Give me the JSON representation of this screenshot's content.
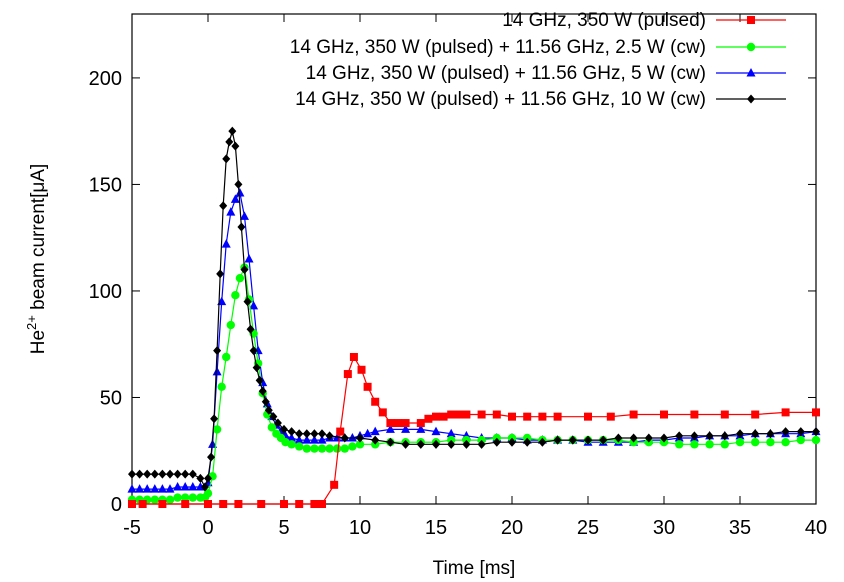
{
  "chart_data": {
    "type": "line",
    "xlabel": "Time [ms]",
    "ylabel": {
      "base": "He",
      "sup": "2+",
      "rest": " beam current[μA]"
    },
    "xlim": [
      -5,
      40
    ],
    "ylim": [
      0,
      230
    ],
    "xticks": [
      -5,
      0,
      5,
      10,
      15,
      20,
      25,
      30,
      35,
      40
    ],
    "yticks": [
      0,
      50,
      100,
      150,
      200
    ],
    "grid": false,
    "legend_position": "top-right",
    "series": [
      {
        "name": "14 GHz, 350 W (pulsed)",
        "color": "#ff0000",
        "marker": "square",
        "x": [
          -5,
          -4.3,
          -3,
          -1.5,
          0,
          1,
          2,
          3.5,
          5,
          6,
          7,
          7.5,
          8.3,
          8.7,
          9.2,
          9.6,
          10.1,
          10.5,
          11,
          11.5,
          12,
          12.5,
          13,
          14,
          14.5,
          15,
          15.5,
          16,
          16.5,
          17,
          18,
          19,
          20,
          21,
          22,
          23,
          25,
          26.5,
          28,
          30,
          32,
          34,
          36,
          38,
          40
        ],
        "y": [
          0,
          0,
          0,
          0,
          0,
          0,
          0,
          0,
          0,
          0,
          0,
          0,
          9,
          34,
          61,
          69,
          63,
          55,
          48,
          43,
          38,
          38,
          38,
          38,
          40,
          41,
          41,
          42,
          42,
          42,
          42,
          42,
          41,
          41,
          41,
          41,
          41,
          41,
          42,
          42,
          42,
          42,
          42,
          43,
          43
        ]
      },
      {
        "name": "14 GHz, 350 W (pulsed) + 11.56 GHz, 2.5 W (cw)",
        "color": "#00ff00",
        "marker": "circle",
        "x": [
          -5,
          -4.5,
          -4,
          -3.5,
          -3,
          -2.5,
          -2,
          -1.5,
          -1,
          -0.5,
          -0.2,
          0,
          0.3,
          0.6,
          0.9,
          1.2,
          1.5,
          1.8,
          2.1,
          2.4,
          2.7,
          3,
          3.3,
          3.6,
          3.9,
          4.2,
          4.5,
          4.8,
          5.1,
          5.5,
          6,
          6.5,
          7,
          7.5,
          8,
          8.5,
          9,
          9.5,
          10,
          11,
          12,
          13,
          14,
          15,
          16,
          17,
          18,
          19,
          20,
          21,
          22,
          23,
          24,
          25,
          26,
          27,
          28,
          29,
          30,
          31,
          32,
          33,
          34,
          35,
          36,
          37,
          38,
          39,
          40
        ],
        "y": [
          2,
          2,
          2,
          2,
          2,
          2,
          3,
          3,
          3,
          3,
          3,
          5,
          13,
          35,
          55,
          69,
          84,
          98,
          106,
          111,
          96,
          80,
          66,
          52,
          42,
          36,
          33,
          31,
          29,
          28,
          27,
          26,
          26,
          26,
          26,
          26,
          26,
          27,
          28,
          28,
          29,
          29,
          29,
          29,
          30,
          30,
          30,
          31,
          31,
          31,
          30,
          30,
          30,
          30,
          30,
          30,
          29,
          29,
          29,
          28,
          28,
          28,
          28,
          29,
          29,
          29,
          29,
          30,
          30
        ]
      },
      {
        "name": "14 GHz, 350 W (pulsed) + 11.56 GHz, 5 W (cw)",
        "color": "#0000ff",
        "marker": "triangle",
        "x": [
          -5,
          -4.5,
          -4,
          -3.5,
          -3,
          -2.5,
          -2,
          -1.5,
          -1,
          -0.5,
          0,
          0.3,
          0.6,
          0.9,
          1.2,
          1.5,
          1.8,
          2.1,
          2.4,
          2.7,
          3,
          3.3,
          3.6,
          3.9,
          4.2,
          4.5,
          4.8,
          5.1,
          5.5,
          6,
          6.5,
          7,
          7.5,
          8,
          8.5,
          9,
          9.5,
          10,
          10.5,
          11,
          12,
          13,
          14,
          15,
          16,
          17,
          18,
          19,
          20,
          21,
          22,
          23,
          24,
          25,
          26,
          27,
          28,
          29,
          30,
          31,
          32,
          33,
          34,
          35,
          36,
          37,
          38,
          39,
          40
        ],
        "y": [
          7,
          7,
          7,
          7,
          7,
          7,
          8,
          8,
          8,
          8,
          10,
          28,
          62,
          95,
          122,
          137,
          143,
          146,
          135,
          115,
          93,
          72,
          57,
          47,
          41,
          37,
          34,
          32,
          31,
          30,
          30,
          30,
          30,
          31,
          31,
          31,
          31,
          32,
          33,
          34,
          35,
          35,
          35,
          34,
          33,
          32,
          31,
          31,
          31,
          30,
          30,
          30,
          30,
          29,
          29,
          29,
          29,
          30,
          30,
          31,
          31,
          32,
          32,
          32,
          33,
          33,
          33,
          33,
          34
        ]
      },
      {
        "name": "14 GHz, 350 W (pulsed) + 11.56 GHz, 10 W (cw)",
        "color": "#000000",
        "marker": "diamond",
        "x": [
          -5,
          -4.5,
          -4,
          -3.5,
          -3,
          -2.5,
          -2,
          -1.5,
          -1,
          -0.5,
          -0.2,
          0,
          0.2,
          0.4,
          0.6,
          0.8,
          1,
          1.2,
          1.4,
          1.6,
          1.8,
          2,
          2.2,
          2.4,
          2.6,
          2.8,
          3,
          3.2,
          3.4,
          3.6,
          3.8,
          4,
          4.3,
          4.6,
          5,
          5.5,
          6,
          6.5,
          7,
          7.5,
          8,
          9,
          10,
          11,
          12,
          13,
          14,
          15,
          16,
          17,
          18,
          19,
          20,
          21,
          22,
          23,
          24,
          25,
          26,
          27,
          28,
          29,
          30,
          31,
          32,
          33,
          34,
          35,
          36,
          37,
          38,
          39,
          40
        ],
        "y": [
          14,
          14,
          14,
          14,
          14,
          14,
          14,
          14,
          14,
          12,
          8,
          12,
          22,
          40,
          72,
          108,
          140,
          162,
          170,
          175,
          168,
          150,
          130,
          110,
          95,
          82,
          72,
          64,
          58,
          53,
          48,
          44,
          41,
          38,
          35,
          34,
          33,
          33,
          33,
          33,
          32,
          31,
          31,
          30,
          29,
          28,
          28,
          28,
          28,
          28,
          28,
          29,
          29,
          29,
          29,
          30,
          30,
          30,
          30,
          31,
          31,
          31,
          31,
          32,
          32,
          32,
          32,
          33,
          33,
          33,
          34,
          34,
          34
        ]
      }
    ]
  }
}
